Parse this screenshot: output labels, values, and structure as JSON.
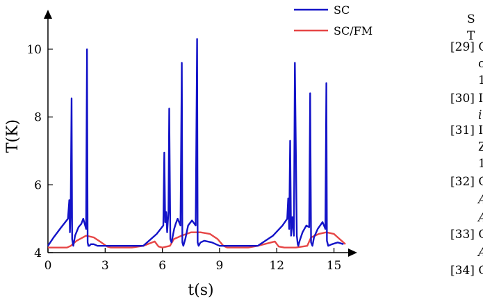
{
  "chart_data": {
    "type": "line",
    "xlabel": "t(s)",
    "ylabel": "T(K)",
    "xlim": [
      0,
      16
    ],
    "ylim": [
      4,
      11
    ],
    "xticks": [
      0,
      3,
      6,
      9,
      12,
      15
    ],
    "yticks": [
      4,
      6,
      8,
      10
    ],
    "grid": false,
    "legend_position": "top-right",
    "series": [
      {
        "name": "SC",
        "color": "#1414c8",
        "x": [
          0.0,
          0.3,
          0.7,
          1.05,
          1.12,
          1.15,
          1.19,
          1.24,
          1.27,
          1.33,
          1.42,
          1.6,
          1.75,
          1.85,
          2.0,
          2.05,
          2.08,
          2.12,
          2.17,
          2.25,
          2.4,
          2.6,
          3.0,
          4.0,
          5.0,
          5.7,
          6.05,
          6.1,
          6.15,
          6.2,
          6.25,
          6.32,
          6.36,
          6.42,
          6.48,
          6.55,
          6.62,
          6.7,
          6.8,
          6.95,
          7.02,
          7.05,
          7.1,
          7.2,
          7.35,
          7.55,
          7.75,
          7.82,
          7.85,
          7.9,
          8.0,
          8.2,
          8.6,
          9.0,
          10.0,
          11.0,
          11.8,
          12.3,
          12.55,
          12.6,
          12.65,
          12.7,
          12.75,
          12.82,
          12.9,
          12.95,
          13.05,
          13.1,
          13.13,
          13.2,
          13.35,
          13.55,
          13.7,
          13.75,
          13.8,
          13.87,
          13.95,
          14.15,
          14.4,
          14.55,
          14.6,
          14.63,
          14.7,
          14.9,
          15.2,
          15.5
        ],
        "y": [
          4.2,
          4.45,
          4.75,
          5.0,
          5.55,
          4.6,
          5.3,
          8.55,
          4.4,
          4.2,
          4.5,
          4.75,
          4.85,
          5.0,
          4.7,
          10.0,
          4.3,
          4.2,
          4.2,
          4.25,
          4.25,
          4.2,
          4.2,
          4.2,
          4.2,
          4.55,
          4.8,
          6.95,
          4.9,
          5.2,
          4.6,
          5.2,
          8.25,
          4.4,
          4.3,
          4.5,
          4.7,
          4.85,
          5.0,
          4.8,
          9.6,
          4.3,
          4.2,
          4.4,
          4.8,
          4.95,
          4.8,
          10.3,
          4.3,
          4.2,
          4.3,
          4.35,
          4.3,
          4.2,
          4.2,
          4.2,
          4.5,
          4.8,
          5.0,
          5.6,
          4.7,
          7.3,
          4.5,
          5.05,
          4.5,
          9.6,
          4.5,
          4.25,
          4.2,
          4.35,
          4.6,
          4.8,
          4.75,
          8.7,
          4.3,
          4.2,
          4.45,
          4.7,
          4.9,
          4.7,
          9.0,
          4.35,
          4.2,
          4.25,
          4.3,
          4.25
        ]
      },
      {
        "name": "SC/FM",
        "color": "#e64646",
        "x": [
          0.0,
          1.0,
          1.2,
          1.5,
          2.0,
          2.4,
          2.8,
          3.1,
          3.3,
          4.0,
          4.4,
          5.0,
          5.6,
          5.8,
          6.0,
          6.4,
          6.6,
          7.0,
          7.5,
          8.0,
          8.5,
          8.9,
          9.2,
          9.4,
          10.0,
          10.5,
          11.0,
          11.9,
          12.1,
          12.4,
          13.0,
          13.6,
          13.8,
          14.2,
          14.6,
          15.0,
          15.3,
          15.6
        ],
        "y": [
          4.15,
          4.15,
          4.2,
          4.35,
          4.5,
          4.45,
          4.3,
          4.18,
          4.15,
          4.15,
          4.15,
          4.2,
          4.33,
          4.18,
          4.15,
          4.2,
          4.4,
          4.5,
          4.6,
          4.6,
          4.55,
          4.4,
          4.2,
          4.15,
          4.15,
          4.15,
          4.2,
          4.33,
          4.18,
          4.15,
          4.15,
          4.2,
          4.45,
          4.55,
          4.6,
          4.55,
          4.4,
          4.25
        ]
      }
    ]
  },
  "references": {
    "items": [
      {
        "marker": "[29]",
        "text": "C"
      },
      {
        "marker": "[30]",
        "text": "I"
      },
      {
        "marker": "[31]",
        "text": "I"
      },
      {
        "marker": "[32]",
        "text": "C"
      },
      {
        "marker": "[33]",
        "text": "C"
      },
      {
        "marker": "[34]",
        "text": "C"
      }
    ],
    "fragments": [
      "S",
      "T",
      "c",
      "1",
      "i",
      "Z",
      "1",
      "A",
      "A",
      "A"
    ]
  }
}
